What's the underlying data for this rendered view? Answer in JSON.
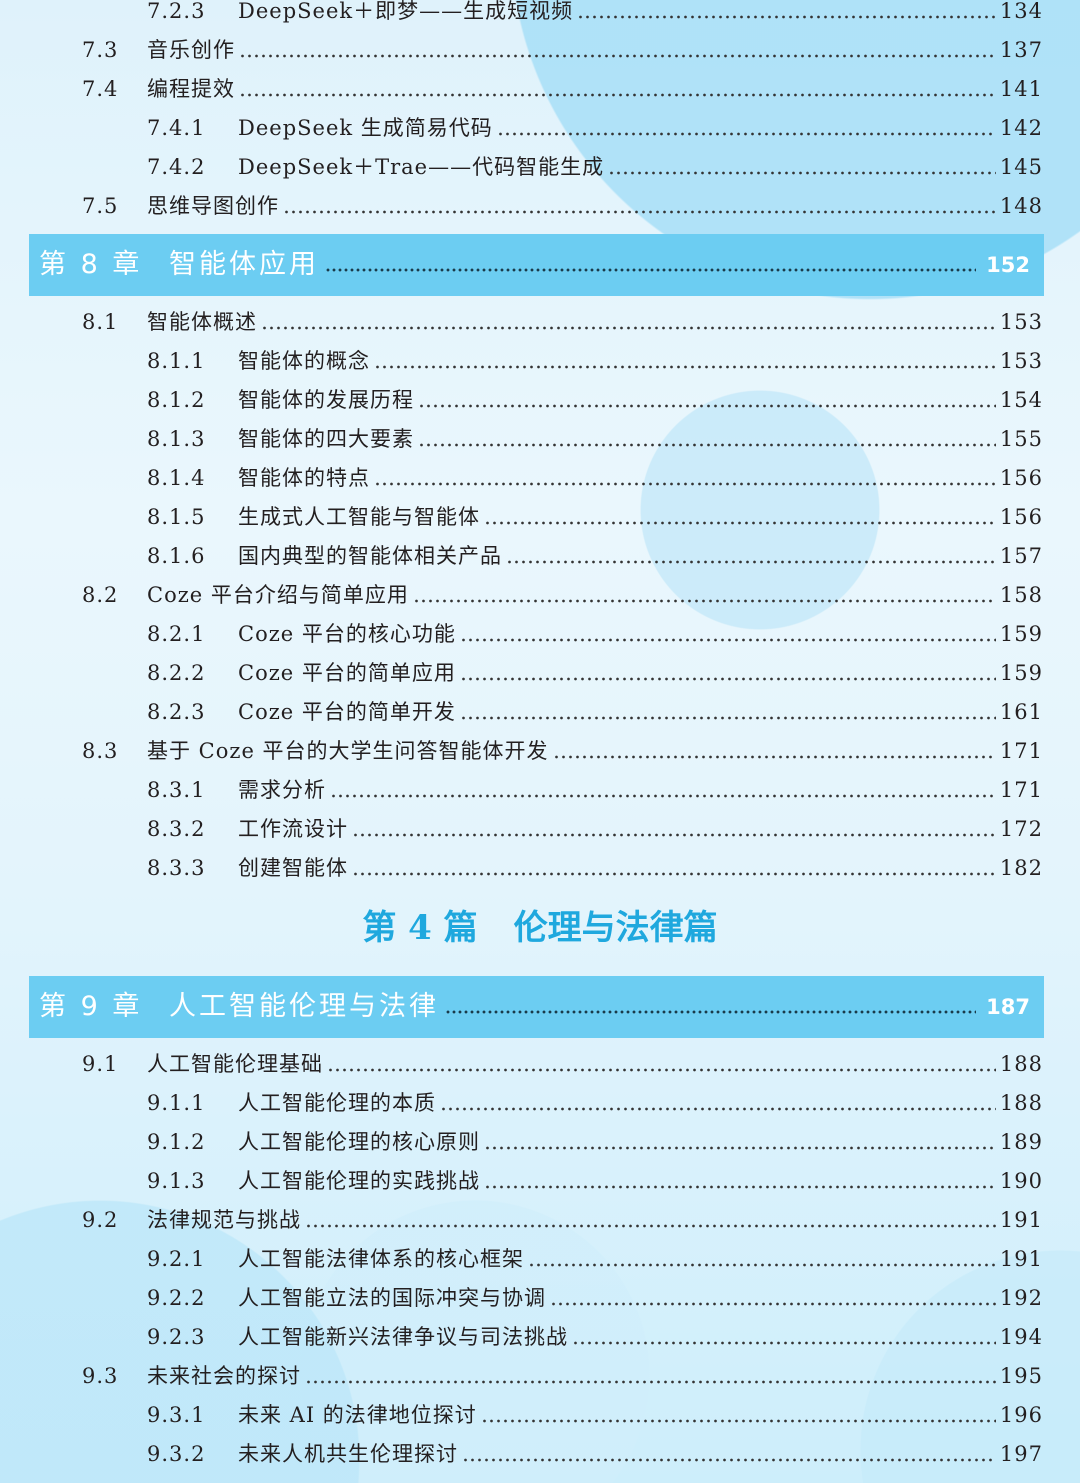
{
  "toc_top": [
    {
      "num": "7.2.3",
      "title": "DeepSeek＋即梦——生成短视频",
      "page": "134",
      "level": 3
    },
    {
      "num": "7.3",
      "title": "音乐创作",
      "page": "137",
      "level": 2
    },
    {
      "num": "7.4",
      "title": "编程提效",
      "page": "141",
      "level": 2
    },
    {
      "num": "7.4.1",
      "title": "DeepSeek 生成简易代码",
      "page": "142",
      "level": 3
    },
    {
      "num": "7.4.2",
      "title": "DeepSeek＋Trae——代码智能生成",
      "page": "145",
      "level": 3
    },
    {
      "num": "7.5",
      "title": "思维导图创作",
      "page": "148",
      "level": 2
    }
  ],
  "chapter8": {
    "num": "第 8 章",
    "title": "智能体应用",
    "page": "152"
  },
  "toc_ch8": [
    {
      "num": "8.1",
      "title": "智能体概述",
      "page": "153",
      "level": 2
    },
    {
      "num": "8.1.1",
      "title": "智能体的概念",
      "page": "153",
      "level": 3
    },
    {
      "num": "8.1.2",
      "title": "智能体的发展历程",
      "page": "154",
      "level": 3
    },
    {
      "num": "8.1.3",
      "title": "智能体的四大要素",
      "page": "155",
      "level": 3
    },
    {
      "num": "8.1.4",
      "title": "智能体的特点",
      "page": "156",
      "level": 3
    },
    {
      "num": "8.1.5",
      "title": "生成式人工智能与智能体",
      "page": "156",
      "level": 3
    },
    {
      "num": "8.1.6",
      "title": "国内典型的智能体相关产品",
      "page": "157",
      "level": 3
    },
    {
      "num": "8.2",
      "title": "Coze 平台介绍与简单应用",
      "page": "158",
      "level": 2
    },
    {
      "num": "8.2.1",
      "title": "Coze 平台的核心功能",
      "page": "159",
      "level": 3
    },
    {
      "num": "8.2.2",
      "title": "Coze 平台的简单应用",
      "page": "159",
      "level": 3
    },
    {
      "num": "8.2.3",
      "title": "Coze 平台的简单开发",
      "page": "161",
      "level": 3
    },
    {
      "num": "8.3",
      "title": "基于 Coze 平台的大学生问答智能体开发",
      "page": "171",
      "level": 2
    },
    {
      "num": "8.3.1",
      "title": "需求分析",
      "page": "171",
      "level": 3
    },
    {
      "num": "8.3.2",
      "title": "工作流设计",
      "page": "172",
      "level": 3
    },
    {
      "num": "8.3.3",
      "title": "创建智能体",
      "page": "182",
      "level": 3
    }
  ],
  "part4": {
    "num": "第 4 篇",
    "title": "伦理与法律篇"
  },
  "chapter9": {
    "num": "第 9 章",
    "title": "人工智能伦理与法律",
    "page": "187"
  },
  "toc_ch9": [
    {
      "num": "9.1",
      "title": "人工智能伦理基础",
      "page": "188",
      "level": 2
    },
    {
      "num": "9.1.1",
      "title": "人工智能伦理的本质",
      "page": "188",
      "level": 3
    },
    {
      "num": "9.1.2",
      "title": "人工智能伦理的核心原则",
      "page": "189",
      "level": 3
    },
    {
      "num": "9.1.3",
      "title": "人工智能伦理的实践挑战",
      "page": "190",
      "level": 3
    },
    {
      "num": "9.2",
      "title": "法律规范与挑战",
      "page": "191",
      "level": 2
    },
    {
      "num": "9.2.1",
      "title": "人工智能法律体系的核心框架",
      "page": "191",
      "level": 3
    },
    {
      "num": "9.2.2",
      "title": "人工智能立法的国际冲突与协调",
      "page": "192",
      "level": 3
    },
    {
      "num": "9.2.3",
      "title": "人工智能新兴法律争议与司法挑战",
      "page": "194",
      "level": 3
    },
    {
      "num": "9.3",
      "title": "未来社会的探讨",
      "page": "195",
      "level": 2
    },
    {
      "num": "9.3.1",
      "title": "未来 AI 的法律地位探讨",
      "page": "196",
      "level": 3
    },
    {
      "num": "9.3.2",
      "title": "未来人机共生伦理探讨",
      "page": "197",
      "level": 3
    }
  ],
  "colors": {
    "chapter_bar": "#6ccdf2",
    "part_title": "#1fa8de"
  }
}
